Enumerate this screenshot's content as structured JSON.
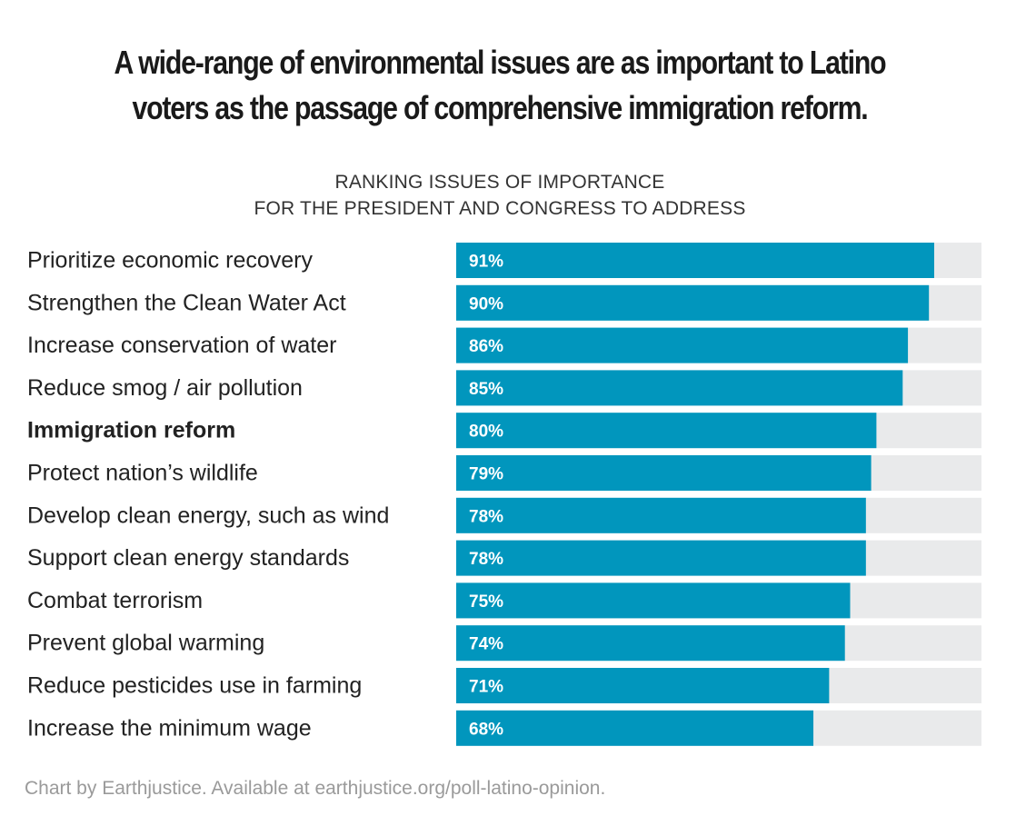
{
  "colors": {
    "bar": "#0196bd",
    "track": "#e9eaeb",
    "value_text": "#ffffff",
    "label_text": "#222222"
  },
  "chart_data": {
    "type": "bar",
    "orientation": "horizontal",
    "title": "A wide-range of environmental issues are as important to Latino voters as the passage of comprehensive immigration reform.",
    "subtitle_lines": [
      "RANKING ISSUES OF IMPORTANCE",
      "FOR THE PRESIDENT AND CONGRESS TO ADDRESS"
    ],
    "categories": [
      "Prioritize economic recovery",
      "Strengthen the Clean Water Act",
      "Increase conservation of water",
      "Reduce smog / air pollution",
      "Immigration reform",
      "Protect nation’s wildlife",
      "Develop clean energy, such as wind",
      "Support clean energy standards",
      "Combat terrorism",
      "Prevent global warming",
      "Reduce pesticides use in farming",
      "Increase the minimum wage"
    ],
    "values": [
      91,
      90,
      86,
      85,
      80,
      79,
      78,
      78,
      75,
      74,
      71,
      68
    ],
    "value_labels": [
      "91%",
      "90%",
      "86%",
      "85%",
      "80%",
      "79%",
      "78%",
      "78%",
      "75%",
      "74%",
      "71%",
      "68%"
    ],
    "highlighted_category": "Immigration reform",
    "xlim": [
      0,
      100
    ],
    "grid": false,
    "legend": "none"
  },
  "source": "Chart by Earthjustice. Available at earthjustice.org/poll-latino-opinion."
}
